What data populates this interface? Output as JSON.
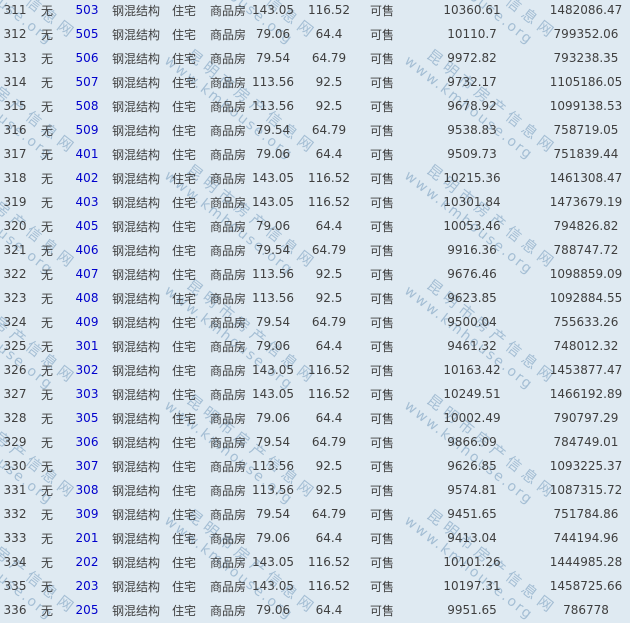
{
  "page": {
    "background_color": "#dfeaf2",
    "text_color": "#3f3f3f",
    "link_color": "#0000cc",
    "status_color": "#009933",
    "watermark_color": "#7399bc"
  },
  "watermark": {
    "line1": "昆明市房产信息网",
    "line2": "www.kmhouse.org"
  },
  "table": {
    "rows": [
      {
        "index": "311",
        "building": "无",
        "room": "503",
        "structure": "钢混结构",
        "use": "住宅",
        "type": "商品房",
        "area": "143.05",
        "inner_area": "116.52",
        "status": "可售",
        "unit_price": "10360.61",
        "total_price": "1482086.47"
      },
      {
        "index": "312",
        "building": "无",
        "room": "505",
        "structure": "钢混结构",
        "use": "住宅",
        "type": "商品房",
        "area": "79.06",
        "inner_area": "64.4",
        "status": "可售",
        "unit_price": "10110.7",
        "total_price": "799352.06"
      },
      {
        "index": "313",
        "building": "无",
        "room": "506",
        "structure": "钢混结构",
        "use": "住宅",
        "type": "商品房",
        "area": "79.54",
        "inner_area": "64.79",
        "status": "可售",
        "unit_price": "9972.82",
        "total_price": "793238.35"
      },
      {
        "index": "314",
        "building": "无",
        "room": "507",
        "structure": "钢混结构",
        "use": "住宅",
        "type": "商品房",
        "area": "113.56",
        "inner_area": "92.5",
        "status": "可售",
        "unit_price": "9732.17",
        "total_price": "1105186.05"
      },
      {
        "index": "315",
        "building": "无",
        "room": "508",
        "structure": "钢混结构",
        "use": "住宅",
        "type": "商品房",
        "area": "113.56",
        "inner_area": "92.5",
        "status": "可售",
        "unit_price": "9678.92",
        "total_price": "1099138.53"
      },
      {
        "index": "316",
        "building": "无",
        "room": "509",
        "structure": "钢混结构",
        "use": "住宅",
        "type": "商品房",
        "area": "79.54",
        "inner_area": "64.79",
        "status": "可售",
        "unit_price": "9538.83",
        "total_price": "758719.05"
      },
      {
        "index": "317",
        "building": "无",
        "room": "401",
        "structure": "钢混结构",
        "use": "住宅",
        "type": "商品房",
        "area": "79.06",
        "inner_area": "64.4",
        "status": "可售",
        "unit_price": "9509.73",
        "total_price": "751839.44"
      },
      {
        "index": "318",
        "building": "无",
        "room": "402",
        "structure": "钢混结构",
        "use": "住宅",
        "type": "商品房",
        "area": "143.05",
        "inner_area": "116.52",
        "status": "可售",
        "unit_price": "10215.36",
        "total_price": "1461308.47"
      },
      {
        "index": "319",
        "building": "无",
        "room": "403",
        "structure": "钢混结构",
        "use": "住宅",
        "type": "商品房",
        "area": "143.05",
        "inner_area": "116.52",
        "status": "可售",
        "unit_price": "10301.84",
        "total_price": "1473679.19"
      },
      {
        "index": "320",
        "building": "无",
        "room": "405",
        "structure": "钢混结构",
        "use": "住宅",
        "type": "商品房",
        "area": "79.06",
        "inner_area": "64.4",
        "status": "可售",
        "unit_price": "10053.46",
        "total_price": "794826.82"
      },
      {
        "index": "321",
        "building": "无",
        "room": "406",
        "structure": "钢混结构",
        "use": "住宅",
        "type": "商品房",
        "area": "79.54",
        "inner_area": "64.79",
        "status": "可售",
        "unit_price": "9916.36",
        "total_price": "788747.72"
      },
      {
        "index": "322",
        "building": "无",
        "room": "407",
        "structure": "钢混结构",
        "use": "住宅",
        "type": "商品房",
        "area": "113.56",
        "inner_area": "92.5",
        "status": "可售",
        "unit_price": "9676.46",
        "total_price": "1098859.09"
      },
      {
        "index": "323",
        "building": "无",
        "room": "408",
        "structure": "钢混结构",
        "use": "住宅",
        "type": "商品房",
        "area": "113.56",
        "inner_area": "92.5",
        "status": "可售",
        "unit_price": "9623.85",
        "total_price": "1092884.55"
      },
      {
        "index": "324",
        "building": "无",
        "room": "409",
        "structure": "钢混结构",
        "use": "住宅",
        "type": "商品房",
        "area": "79.54",
        "inner_area": "64.79",
        "status": "可售",
        "unit_price": "9500.04",
        "total_price": "755633.26"
      },
      {
        "index": "325",
        "building": "无",
        "room": "301",
        "structure": "钢混结构",
        "use": "住宅",
        "type": "商品房",
        "area": "79.06",
        "inner_area": "64.4",
        "status": "可售",
        "unit_price": "9461.32",
        "total_price": "748012.32"
      },
      {
        "index": "326",
        "building": "无",
        "room": "302",
        "structure": "钢混结构",
        "use": "住宅",
        "type": "商品房",
        "area": "143.05",
        "inner_area": "116.52",
        "status": "可售",
        "unit_price": "10163.42",
        "total_price": "1453877.47"
      },
      {
        "index": "327",
        "building": "无",
        "room": "303",
        "structure": "钢混结构",
        "use": "住宅",
        "type": "商品房",
        "area": "143.05",
        "inner_area": "116.52",
        "status": "可售",
        "unit_price": "10249.51",
        "total_price": "1466192.89"
      },
      {
        "index": "328",
        "building": "无",
        "room": "305",
        "structure": "钢混结构",
        "use": "住宅",
        "type": "商品房",
        "area": "79.06",
        "inner_area": "64.4",
        "status": "可售",
        "unit_price": "10002.49",
        "total_price": "790797.29"
      },
      {
        "index": "329",
        "building": "无",
        "room": "306",
        "structure": "钢混结构",
        "use": "住宅",
        "type": "商品房",
        "area": "79.54",
        "inner_area": "64.79",
        "status": "可售",
        "unit_price": "9866.09",
        "total_price": "784749.01"
      },
      {
        "index": "330",
        "building": "无",
        "room": "307",
        "structure": "钢混结构",
        "use": "住宅",
        "type": "商品房",
        "area": "113.56",
        "inner_area": "92.5",
        "status": "可售",
        "unit_price": "9626.85",
        "total_price": "1093225.37"
      },
      {
        "index": "331",
        "building": "无",
        "room": "308",
        "structure": "钢混结构",
        "use": "住宅",
        "type": "商品房",
        "area": "113.56",
        "inner_area": "92.5",
        "status": "可售",
        "unit_price": "9574.81",
        "total_price": "1087315.72"
      },
      {
        "index": "332",
        "building": "无",
        "room": "309",
        "structure": "钢混结构",
        "use": "住宅",
        "type": "商品房",
        "area": "79.54",
        "inner_area": "64.79",
        "status": "可售",
        "unit_price": "9451.65",
        "total_price": "751784.86"
      },
      {
        "index": "333",
        "building": "无",
        "room": "201",
        "structure": "钢混结构",
        "use": "住宅",
        "type": "商品房",
        "area": "79.06",
        "inner_area": "64.4",
        "status": "可售",
        "unit_price": "9413.04",
        "total_price": "744194.96"
      },
      {
        "index": "334",
        "building": "无",
        "room": "202",
        "structure": "钢混结构",
        "use": "住宅",
        "type": "商品房",
        "area": "143.05",
        "inner_area": "116.52",
        "status": "可售",
        "unit_price": "10101.26",
        "total_price": "1444985.28"
      },
      {
        "index": "335",
        "building": "无",
        "room": "203",
        "structure": "钢混结构",
        "use": "住宅",
        "type": "商品房",
        "area": "143.05",
        "inner_area": "116.52",
        "status": "可售",
        "unit_price": "10197.31",
        "total_price": "1458725.66"
      },
      {
        "index": "336",
        "building": "无",
        "room": "205",
        "structure": "钢混结构",
        "use": "住宅",
        "type": "商品房",
        "area": "79.06",
        "inner_area": "64.4",
        "status": "可售",
        "unit_price": "9951.65",
        "total_price": "786778"
      }
    ]
  }
}
